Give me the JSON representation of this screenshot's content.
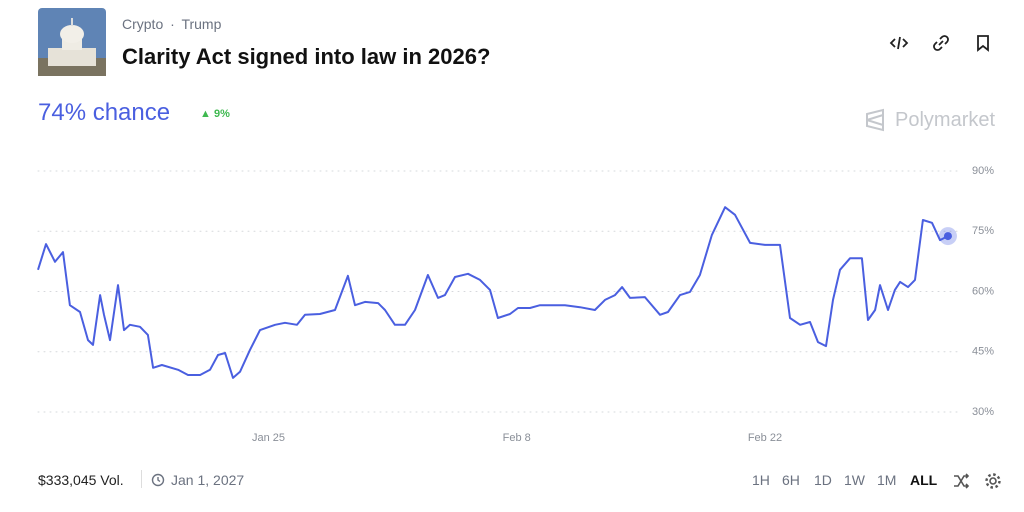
{
  "header": {
    "category": "Crypto",
    "subcategory": "Trump",
    "title": "Clarity Act signed into law in 2026?"
  },
  "chance": {
    "label": "74% chance",
    "change": "9%"
  },
  "brand": "Polymarket",
  "chart_data": {
    "type": "line",
    "color": "#4a5fe0",
    "x": [
      -13,
      -12.55,
      -12.04,
      -11.59,
      -11.2,
      -10.63,
      -10.18,
      -9.9,
      -9.5,
      -9.28,
      -8.94,
      -8.49,
      -8.15,
      -7.81,
      -7.25,
      -6.8,
      -6.51,
      -6.01,
      -5.1,
      -4.54,
      -3.86,
      -3.3,
      -2.85,
      -2.45,
      -2,
      -1.61,
      -1.05,
      -0.48,
      0.37,
      0.93,
      1.61,
      2.06,
      2.9,
      3.75,
      4.48,
      4.88,
      5.44,
      6.18,
      6.57,
      7.13,
      7.7,
      8.26,
      8.99,
      9.56,
      9.95,
      10.52,
      11.25,
      11.93,
      12.49,
      12.94,
      13.62,
      14.07,
      14.75,
      15.31,
      16.72,
      17.57,
      18.41,
      18.98,
      19.54,
      19.94,
      20.39,
      21.23,
      22.08,
      22.53,
      23.21,
      23.77,
      24.33,
      25.01,
      25.75,
      26.31,
      27.16,
      28,
      28.85,
      29.41,
      29.98,
      30.54,
      30.99,
      31.44,
      31.84,
      32.23,
      32.8,
      33.47,
      33.81,
      34.21,
      34.49,
      34.94,
      35.33,
      35.62,
      36.07,
      36.46,
      36.91,
      37.42,
      37.87,
      38.32
    ],
    "values": [
      65.4,
      71.8,
      67.4,
      69.8,
      56.6,
      54.9,
      47.9,
      46.7,
      59.1,
      54.2,
      47.9,
      61.6,
      50.4,
      51.7,
      51.2,
      49.2,
      41,
      41.7,
      40.5,
      39.2,
      39.2,
      40.5,
      44.2,
      44.7,
      38.5,
      40,
      45.4,
      50.4,
      51.7,
      52.2,
      51.7,
      54.2,
      54.4,
      55.4,
      63.9,
      56.6,
      57.4,
      57.1,
      55.4,
      51.7,
      51.7,
      55.4,
      64.1,
      58.4,
      59.1,
      63.6,
      64.4,
      62.9,
      60.4,
      53.4,
      54.4,
      55.9,
      55.9,
      56.6,
      56.6,
      56.1,
      55.4,
      57.9,
      59.1,
      61.1,
      58.4,
      58.6,
      54.2,
      54.9,
      59.1,
      59.9,
      64.1,
      74.1,
      81,
      79.1,
      72.1,
      71.6,
      71.6,
      53.4,
      51.7,
      52.4,
      47.4,
      46.4,
      57.9,
      65.4,
      68.3,
      68.3,
      52.9,
      55.4,
      61.6,
      55.4,
      60.4,
      62.4,
      61.1,
      62.9,
      77.8,
      77.1,
      72.8,
      73.8
    ],
    "xlim": [
      -13,
      39
    ],
    "xticks": [
      {
        "value": 0,
        "label": "Jan 25"
      },
      {
        "value": 14,
        "label": "Feb 8"
      },
      {
        "value": 28,
        "label": "Feb 22"
      }
    ],
    "ylim": [
      30,
      90
    ],
    "yticks": [
      {
        "value": 90,
        "label": "90%"
      },
      {
        "value": 75,
        "label": "75%"
      },
      {
        "value": 60,
        "label": "60%"
      },
      {
        "value": 45,
        "label": "45%"
      },
      {
        "value": 30,
        "label": "30%"
      }
    ],
    "grid": true
  },
  "footer": {
    "volume": "$333,045 Vol.",
    "end_date": "Jan 1, 2027",
    "ranges": [
      "1H",
      "6H",
      "1D",
      "1W",
      "1M",
      "ALL"
    ]
  }
}
